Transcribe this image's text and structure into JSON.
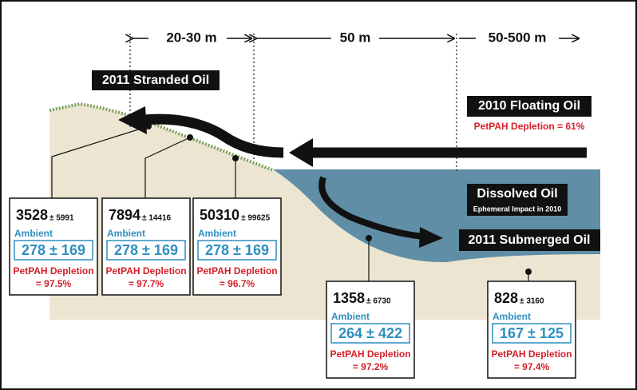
{
  "distances": [
    "20-30 m",
    "50 m",
    "50-500 m"
  ],
  "labels": {
    "stranded": "2011 Stranded Oil",
    "floating": "2010 Floating Oil",
    "floating_depletion": "PetPAH Depletion = 61%",
    "dissolved": "Dissolved Oil",
    "dissolved_note": "Ephemeral Impact in 2010",
    "submerged": "2011 Submerged Oil"
  },
  "samples": [
    {
      "value": "3528",
      "spread": "± 5991",
      "ambient_label": "Ambient",
      "ambient": "278 ± 169",
      "depletion_label": "PetPAH Depletion",
      "depletion": "= 97.5%"
    },
    {
      "value": "7894",
      "spread": "± 14416",
      "ambient_label": "Ambient",
      "ambient": "278 ± 169",
      "depletion_label": "PetPAH Depletion",
      "depletion": "= 97.7%"
    },
    {
      "value": "50310",
      "spread": "± 99625",
      "ambient_label": "Ambient",
      "ambient": "278 ± 169",
      "depletion_label": "PetPAH Depletion",
      "depletion": "= 96.7%"
    },
    {
      "value": "1358",
      "spread": "± 6730",
      "ambient_label": "Ambient",
      "ambient": "264 ± 422",
      "depletion_label": "PetPAH Depletion",
      "depletion": "= 97.2%"
    },
    {
      "value": "828",
      "spread": "± 3160",
      "ambient_label": "Ambient",
      "ambient": "167 ± 125",
      "depletion_label": "PetPAH Depletion",
      "depletion": "= 97.4%"
    }
  ]
}
